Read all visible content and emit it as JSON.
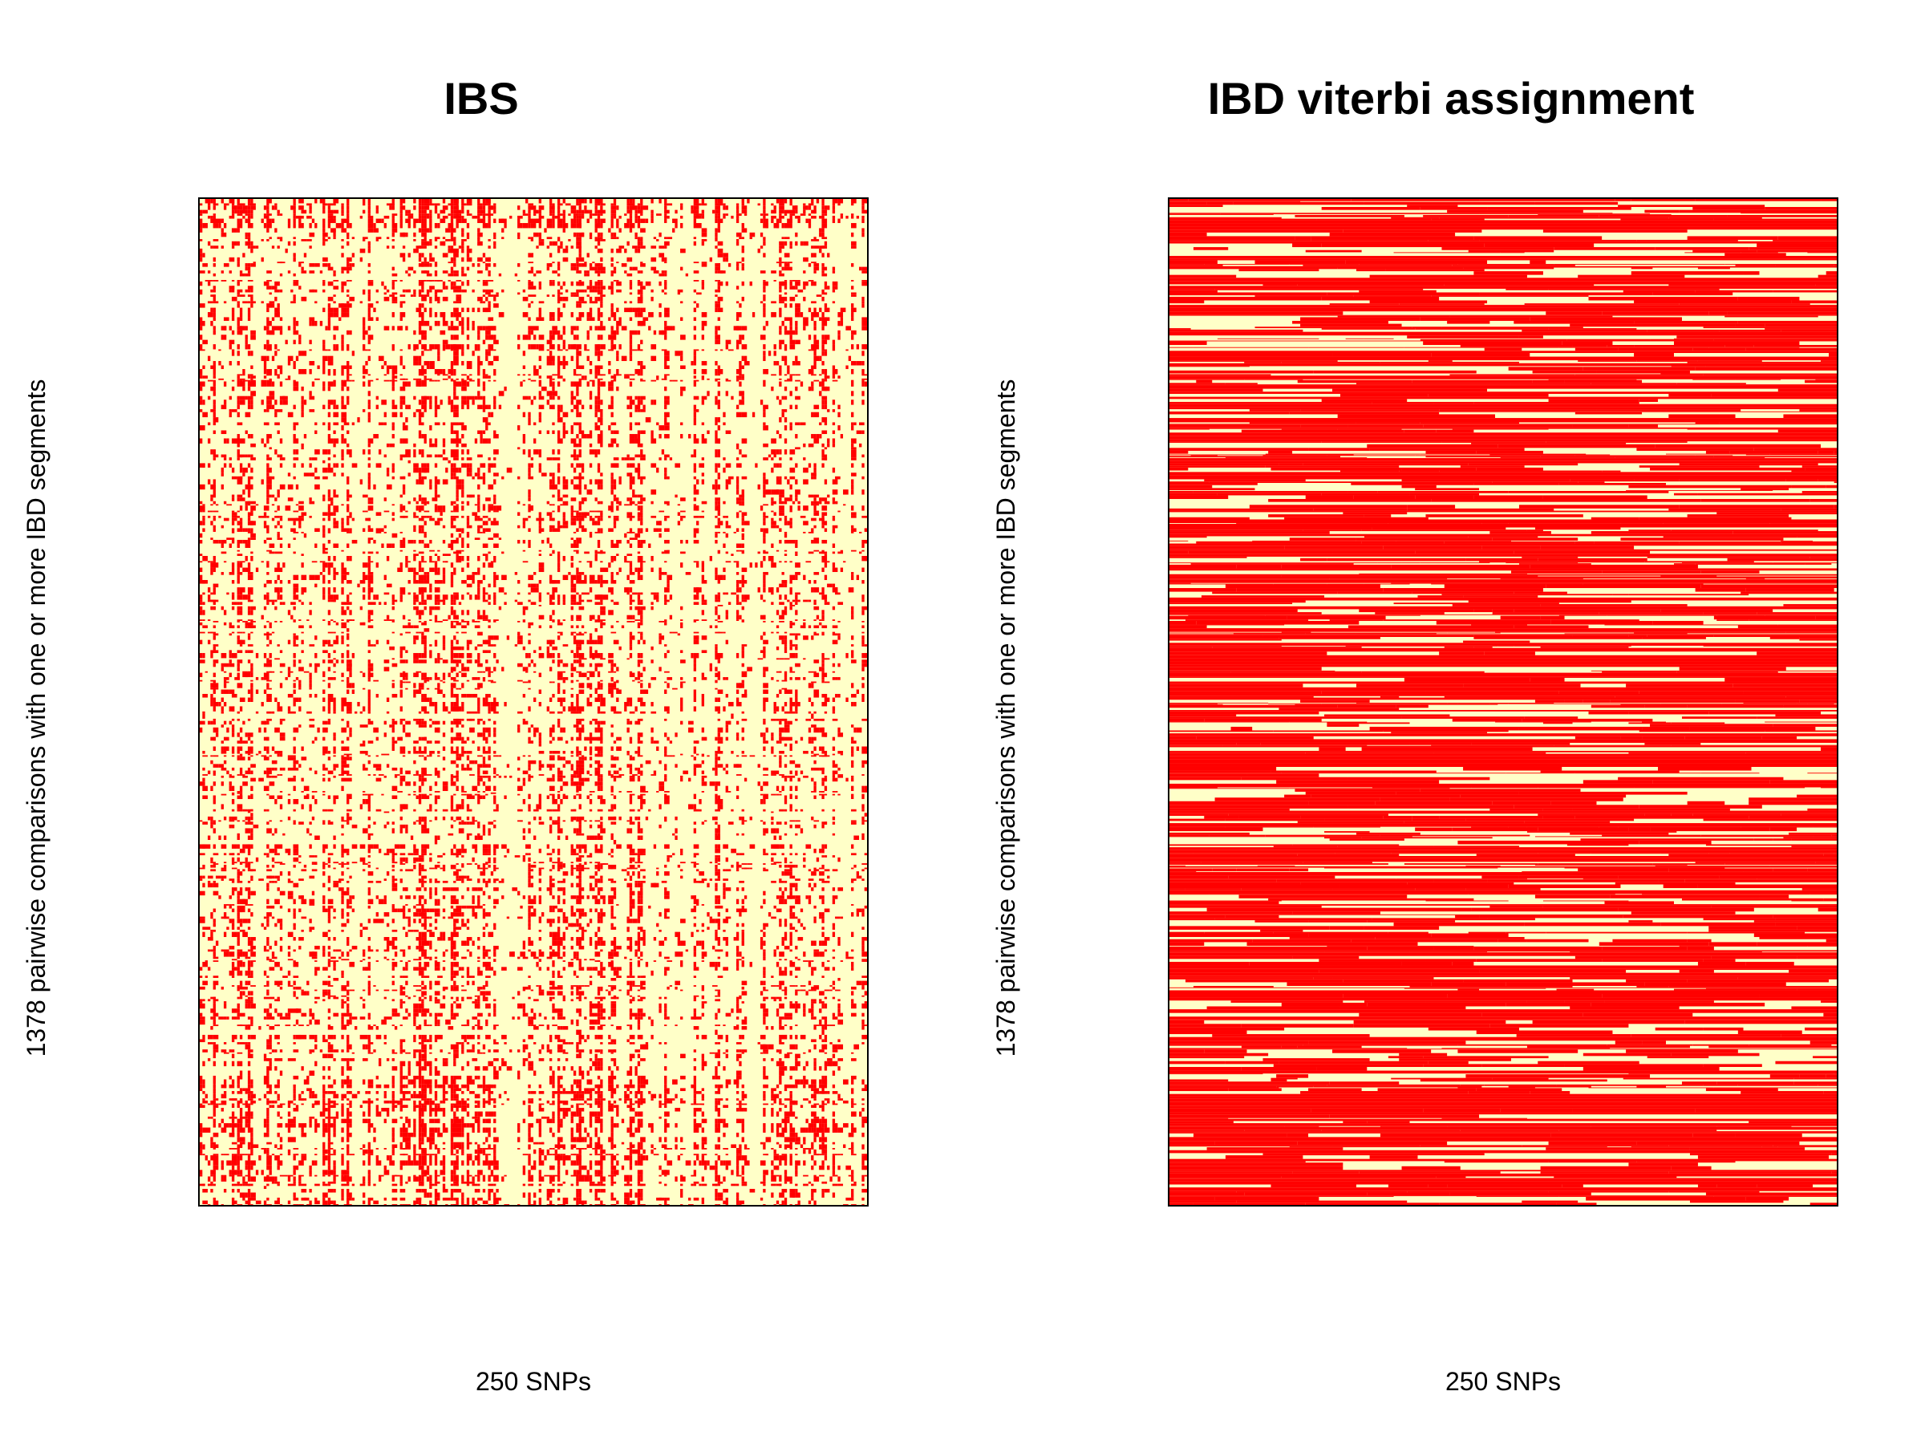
{
  "chart_data": [
    {
      "type": "heatmap",
      "title": "IBS",
      "xlabel": "250 SNPs",
      "ylabel": "1378 pairwise comparisons with one or more IBD segments",
      "n_cols": 250,
      "n_rows": 1378,
      "grid": false,
      "colors": {
        "low": "#FFFFC8",
        "high": "#FF0000"
      },
      "summary": "Binary matrix; red marks alternate with light yellow in fine, speckled vertical stripes; denser red at top band and lower rows."
    },
    {
      "type": "heatmap",
      "title": "IBD viterbi assignment",
      "xlabel": "250 SNPs",
      "ylabel": "1378 pairwise comparisons with one or more IBD segments",
      "n_cols": 250,
      "n_rows": 1378,
      "grid": false,
      "colors": {
        "low": "#FFFFC8",
        "high": "#FF0000"
      },
      "summary": "Binary matrix; predominantly red horizontal segments with light yellow gaps forming long runs across SNPs."
    }
  ]
}
